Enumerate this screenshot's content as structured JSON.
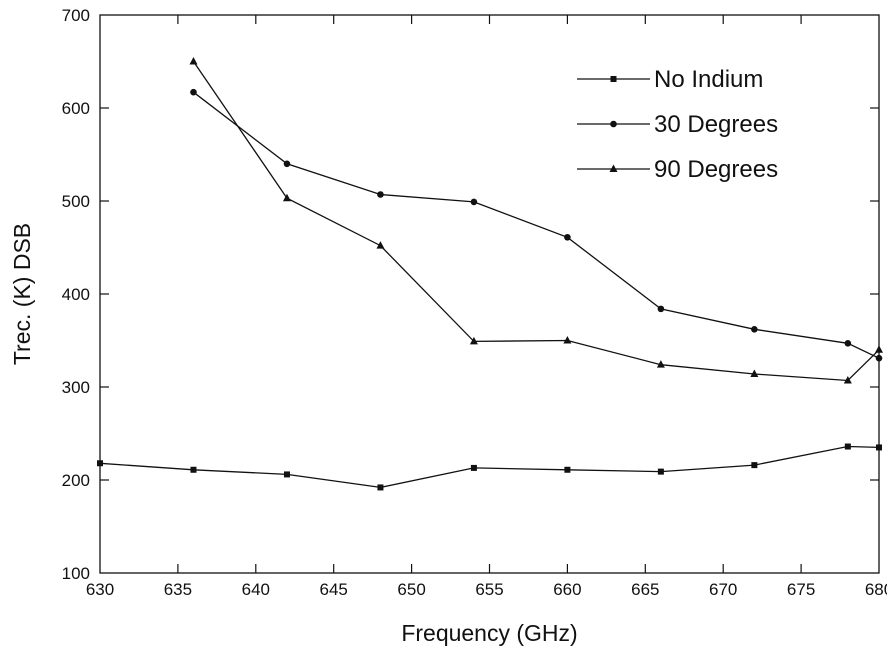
{
  "chart_data": {
    "type": "line",
    "title": "",
    "xlabel": "Frequency (GHz)",
    "ylabel": "Trec. (K) DSB",
    "xlim": [
      630,
      680
    ],
    "ylim": [
      100,
      700
    ],
    "xticks": [
      "630",
      "635",
      "640",
      "645",
      "650",
      "655",
      "660",
      "665",
      "670",
      "675",
      "680"
    ],
    "yticks": [
      "100",
      "200",
      "300",
      "400",
      "500",
      "600",
      "700"
    ],
    "grid": false,
    "legend_position": "top-right",
    "series": [
      {
        "name": "No Indium",
        "marker": "square",
        "color": "#111111",
        "x": [
          630,
          636,
          642,
          648,
          654,
          660,
          666,
          672,
          678,
          680
        ],
        "y": [
          218,
          211,
          206,
          192,
          213,
          211,
          209,
          216,
          236,
          235
        ]
      },
      {
        "name": "30 Degrees",
        "marker": "circle",
        "color": "#111111",
        "x": [
          636,
          642,
          648,
          654,
          660,
          666,
          672,
          678,
          680
        ],
        "y": [
          617,
          540,
          507,
          499,
          461,
          384,
          362,
          347,
          331
        ]
      },
      {
        "name": "90 Degrees",
        "marker": "triangle",
        "color": "#111111",
        "x": [
          636,
          642,
          648,
          654,
          660,
          666,
          672,
          678,
          680
        ],
        "y": [
          650,
          503,
          452,
          349,
          350,
          324,
          314,
          307,
          340
        ]
      }
    ]
  }
}
